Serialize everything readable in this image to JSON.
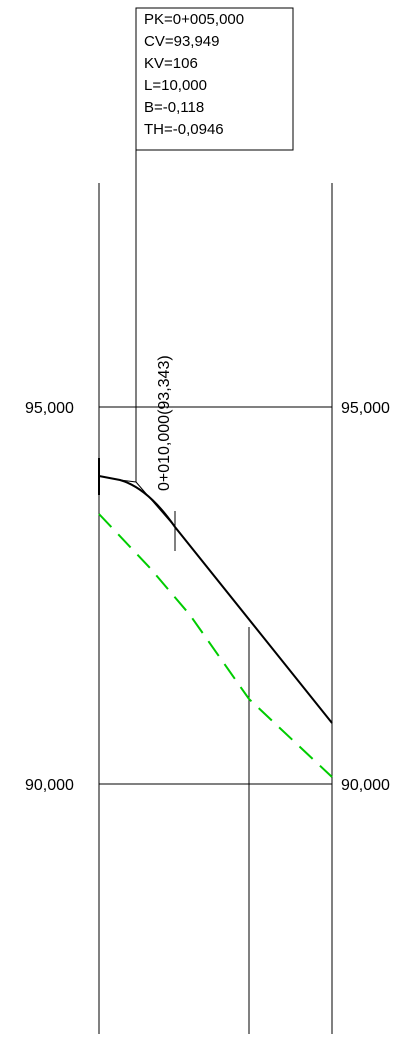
{
  "info_box": {
    "lines": [
      "PK=0+005,000",
      "CV=93,949",
      "KV=106",
      "L=10,000",
      "B=-0,118",
      "TH=-0,0946"
    ]
  },
  "profile": {
    "elevation_labels_left": [
      "95,000",
      "90,000"
    ],
    "elevation_labels_right": [
      "95,000",
      "90,000"
    ],
    "station_label": "0+010,000(93,343)"
  },
  "colors": {
    "line": "#000000",
    "terrain": "#00cc00",
    "background": "#ffffff"
  }
}
